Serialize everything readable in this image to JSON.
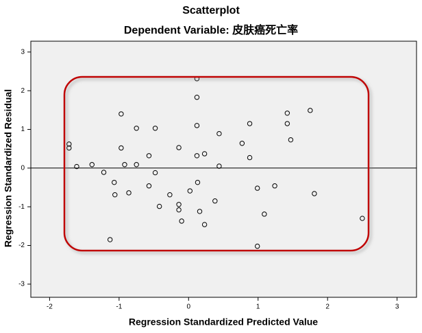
{
  "chart_data": {
    "type": "scatter",
    "title": "Scatterplot",
    "subtitle": "Dependent Variable: 皮肤癌死亡率",
    "x_label": "Regression Standardized Predicted Value",
    "y_label": "Regression Standardized Residual",
    "x": [
      -1.72,
      -1.72,
      -1.61,
      -1.39,
      -1.22,
      -1.13,
      -1.07,
      -1.06,
      -0.97,
      -0.97,
      -0.92,
      -0.86,
      -0.75,
      -0.75,
      -0.57,
      -0.57,
      -0.48,
      -0.48,
      -0.42,
      -0.27,
      -0.14,
      -0.14,
      -0.14,
      -0.1,
      0.02,
      0.12,
      0.12,
      0.12,
      0.12,
      0.13,
      0.16,
      0.23,
      0.23,
      0.38,
      0.44,
      0.44,
      0.77,
      0.88,
      0.88,
      0.99,
      0.99,
      1.09,
      1.24,
      1.42,
      1.42,
      1.47,
      1.75,
      1.81,
      2.5
    ],
    "values": [
      0.62,
      0.52,
      0.04,
      0.09,
      -0.11,
      -1.85,
      -0.37,
      -0.69,
      1.4,
      0.52,
      0.09,
      -0.64,
      1.03,
      0.09,
      0.32,
      -0.46,
      1.03,
      -0.12,
      -0.99,
      -0.69,
      0.53,
      -0.94,
      -1.08,
      -1.37,
      -0.59,
      2.31,
      1.83,
      1.1,
      0.32,
      -0.37,
      -1.12,
      0.37,
      -1.46,
      -0.85,
      0.89,
      0.05,
      0.64,
      1.15,
      0.27,
      -0.52,
      -2.02,
      -1.19,
      -0.46,
      1.42,
      1.15,
      0.73,
      1.49,
      -0.66,
      -1.3
    ],
    "xlim": [
      -2.27,
      3.28
    ],
    "ylim": [
      -3.34,
      3.28
    ],
    "xticks": [
      -2,
      -1,
      0,
      1,
      2,
      3
    ],
    "yticks": [
      -3,
      -2,
      -1,
      0,
      1,
      2,
      3
    ],
    "reference_y": 0,
    "background": "#f0f0f0",
    "marker_color": "#000000"
  }
}
